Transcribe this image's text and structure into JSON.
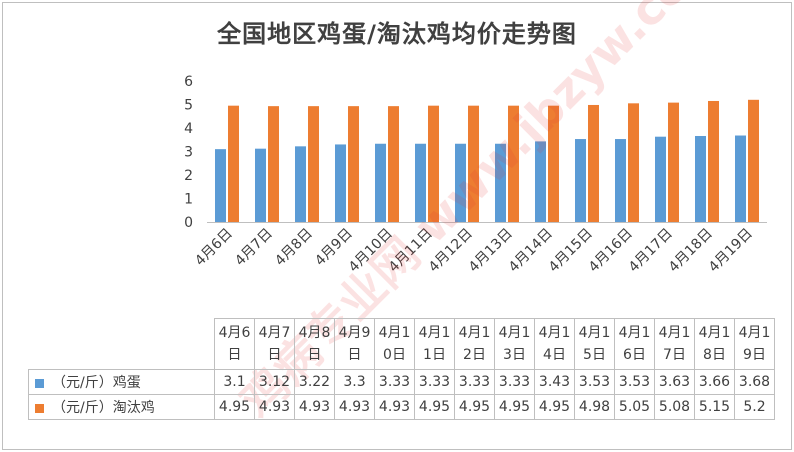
{
  "title": "全国地区鸡蛋/淘汰鸡均价走势图",
  "chart_data": {
    "type": "bar",
    "categories": [
      "4月6日",
      "4月7日",
      "4月8日",
      "4月9日",
      "4月10日",
      "4月11日",
      "4月12日",
      "4月13日",
      "4月14日",
      "4月15日",
      "4月16日",
      "4月17日",
      "4月18日",
      "4月19日"
    ],
    "series": [
      {
        "name": "（元/斤）鸡蛋",
        "color": "#5b9bd5",
        "values": [
          3.1,
          3.12,
          3.22,
          3.3,
          3.33,
          3.33,
          3.33,
          3.33,
          3.43,
          3.53,
          3.53,
          3.63,
          3.66,
          3.68
        ]
      },
      {
        "name": "（元/斤）淘汰鸡",
        "color": "#ed7d31",
        "values": [
          4.95,
          4.93,
          4.93,
          4.93,
          4.93,
          4.95,
          4.95,
          4.95,
          4.95,
          4.98,
          5.05,
          5.08,
          5.15,
          5.2
        ]
      }
    ],
    "ylim": [
      0,
      6
    ],
    "yticks": [
      0,
      1,
      2,
      3,
      4,
      5,
      6
    ],
    "grid": false,
    "legend": "data-table"
  },
  "table_categories": [
    "4月1\n6日",
    "4月1\n7日",
    "4月1\n8日",
    "4月1\n9日"
  ],
  "watermark_text": "鸡病专业网 www.jbzyw.com"
}
